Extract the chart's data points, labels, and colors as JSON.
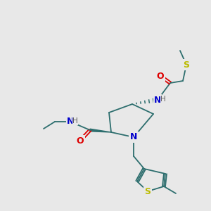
{
  "background_color": "#e8e8e8",
  "bond_color": "#2d6e6e",
  "atom_colors": {
    "O": "#dd0000",
    "N": "#0000cc",
    "S": "#bbbb00",
    "H": "#606060",
    "C": "#2d6e6e"
  },
  "figsize": [
    3.0,
    3.0
  ],
  "dpi": 100
}
